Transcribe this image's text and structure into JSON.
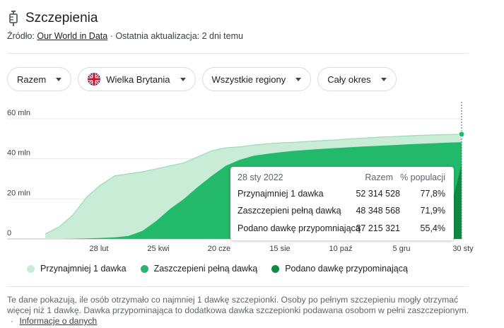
{
  "header": {
    "icon": "syringe-icon",
    "title": "Szczepienia",
    "source_prefix": "Źródło:",
    "source_link": "Our World in Data",
    "source_suffix": "· Ostatnia aktualizacja: 2 dni temu"
  },
  "filters": [
    {
      "label": "Razem"
    },
    {
      "label": "Wielka Brytania",
      "icon": "uk-flag-icon"
    },
    {
      "label": "Wszystkie regiony"
    },
    {
      "label": "Cały okres"
    }
  ],
  "tooltip": {
    "date": "28 sty 2022",
    "col_total": "Razem",
    "col_pct": "% populacji",
    "rows": [
      {
        "label": "Przynajmniej 1 dawka",
        "total": "52 314 528",
        "pct": "77,8%"
      },
      {
        "label": "Zaszczepieni pełną dawką",
        "total": "48 348 568",
        "pct": "71,9%"
      },
      {
        "label": "Podano dawkę przypomniającą",
        "total": "37 215 321",
        "pct": "55,4%"
      }
    ]
  },
  "chart_data": {
    "type": "area",
    "x_tick_labels": [
      "28 lut",
      "25 kwi",
      "20 cze",
      "15 sie",
      "10 paź",
      "5 gru",
      "30 sty"
    ],
    "x": [
      0,
      14,
      28,
      42,
      56,
      70,
      84,
      98,
      112,
      126,
      140,
      154,
      168,
      182,
      196,
      210,
      224,
      238,
      252,
      266,
      280,
      294,
      308,
      322,
      336,
      350,
      364,
      378,
      392,
      406,
      420
    ],
    "y_tick_labels": [
      "0",
      "20 mln",
      "40 mln",
      "60 mln"
    ],
    "ylim": [
      0,
      60
    ],
    "series": [
      {
        "name": "Przynajmniej 1 dawka",
        "color": "#c9ecd6",
        "values": [
          2.5,
          6,
          12,
          21,
          27,
          31.5,
          32.5,
          33.5,
          35,
          36.5,
          38,
          41,
          44,
          45.5,
          46,
          46.8,
          47.5,
          48,
          48.3,
          48.7,
          49.1,
          49.5,
          50,
          50.4,
          50.8,
          51.1,
          51.4,
          51.7,
          51.9,
          52.1,
          52.3
        ]
      },
      {
        "name": "Zaszczepieni pełną dawką",
        "color": "#23b96b",
        "values": [
          0,
          0,
          0.1,
          0.3,
          0.5,
          0.8,
          1.5,
          4,
          9,
          15,
          20,
          26,
          31.5,
          36.5,
          39.5,
          41.5,
          42.5,
          43.3,
          44,
          44.5,
          45,
          45.4,
          45.8,
          46.2,
          46.5,
          46.8,
          47.2,
          47.5,
          47.8,
          48.1,
          48.3
        ]
      },
      {
        "name": "Podano dawkę przypomniającą",
        "color": "#0f8a43",
        "values": [
          0,
          0,
          0,
          0,
          0,
          0,
          0,
          0,
          0,
          0,
          0,
          0,
          0,
          0,
          0,
          0,
          0,
          0,
          0.5,
          1,
          1.5,
          2,
          2.5,
          3,
          4,
          5,
          6,
          7,
          8,
          9.5,
          37.2
        ]
      }
    ]
  },
  "legend": [
    {
      "label": "Przynajmniej 1 dawka",
      "color": "#c9ecd6"
    },
    {
      "label": "Zaszczepieni pełną dawką",
      "color": "#23b96b"
    },
    {
      "label": "Podano dawkę przypominającą",
      "color": "#0f8a43"
    }
  ],
  "footnote": {
    "text": "Te dane pokazują, ile osób otrzymało co najmniej 1 dawkę szczepionki. Osoby po pełnym szczepieniu mogły otrzymać więcej niż 1 dawkę. Dawka przypominająca to dodatkowa dawka szczepionki podawana osobom w pełni zaszczepionym.",
    "sep": "·",
    "link": "Informacje o danych"
  }
}
